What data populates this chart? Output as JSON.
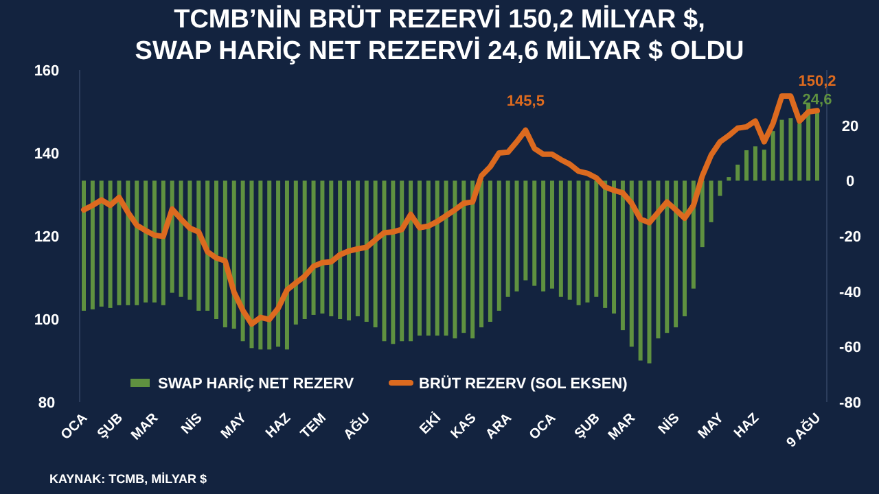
{
  "chart_data": {
    "type": "bar",
    "title": "TCMB’NİN BRÜT REZERVİ 150,2 MİLYAR $,\nSWAP HARİÇ NET REZERVİ 24,6 MİLYAR $ OLDU",
    "categories": [
      "OCA",
      null,
      null,
      null,
      "ŞUB",
      null,
      null,
      null,
      "MAR",
      null,
      null,
      null,
      null,
      "NİS",
      null,
      null,
      null,
      null,
      "MAY",
      null,
      null,
      null,
      null,
      "HAZ",
      null,
      null,
      null,
      "TEM",
      null,
      null,
      null,
      null,
      "AĞU",
      null,
      null,
      null,
      null,
      null,
      null,
      null,
      "EKİ",
      null,
      null,
      null,
      "KAS",
      null,
      null,
      null,
      "ARA",
      null,
      null,
      null,
      null,
      "OCA",
      null,
      null,
      null,
      null,
      "ŞUB",
      null,
      null,
      null,
      "MAR",
      null,
      null,
      null,
      null,
      "NİS",
      null,
      null,
      null,
      null,
      "MAY",
      null,
      null,
      null,
      "HAZ",
      null,
      null,
      null,
      null,
      null,
      null,
      "9 AĞU"
    ],
    "series": [
      {
        "name": "SWAP HARİÇ NET REZERV",
        "axis": "y2",
        "color": "#5f9140",
        "values": [
          -47,
          -46.5,
          -45.5,
          -46,
          -45,
          -45,
          -45,
          -44,
          -44,
          -45,
          -40.5,
          -42,
          -43,
          -47,
          -47,
          -50,
          -53,
          -53.5,
          -58,
          -60.5,
          -61,
          -61,
          -60,
          -61,
          -52,
          -50,
          -48.5,
          -48,
          -49,
          -50,
          -50.5,
          -49,
          -51,
          -53,
          -58,
          -59,
          -58,
          -58,
          -56,
          -56,
          -56,
          -56,
          -57,
          -55,
          -57,
          -53,
          -51,
          -47,
          -42,
          -40,
          -36,
          -38,
          -40,
          -39,
          -42,
          -43,
          -45,
          -44,
          -42,
          -46,
          -48,
          -54,
          -60,
          -65,
          -66,
          -57,
          -55,
          -53,
          -49,
          -39,
          -24,
          -15,
          -5.5,
          1.3,
          5.8,
          11,
          12.4,
          11.2,
          17.9,
          22,
          22.6,
          20.7,
          28,
          24.6
        ],
        "value_labels": [
          null,
          null,
          null,
          null,
          null,
          null,
          null,
          null,
          null,
          null,
          null,
          null,
          null,
          null,
          null,
          null,
          null,
          null,
          null,
          null,
          null,
          null,
          null,
          null,
          null,
          null,
          null,
          null,
          null,
          null,
          null,
          null,
          null,
          null,
          null,
          null,
          null,
          null,
          null,
          null,
          null,
          null,
          null,
          null,
          null,
          null,
          null,
          null,
          null,
          null,
          null,
          null,
          null,
          null,
          null,
          null,
          null,
          null,
          null,
          null,
          null,
          null,
          null,
          null,
          null,
          null,
          null,
          null,
          null,
          null,
          null,
          null,
          null,
          null,
          null,
          null,
          null,
          null,
          null,
          null,
          null,
          null,
          null,
          "24,6"
        ]
      },
      {
        "name": "BRÜT REZERV (SOL EKSEN)",
        "type": "line",
        "color": "#dc6a1f",
        "values": [
          126.3,
          127.4,
          128.7,
          127.4,
          129.3,
          125.7,
          122.6,
          121.3,
          120.2,
          119.9,
          126.5,
          124.1,
          121.9,
          121,
          116.2,
          114.7,
          114,
          106.5,
          102.1,
          98.8,
          100.4,
          99.9,
          102.6,
          107,
          108.7,
          110.3,
          112.7,
          113.6,
          113.8,
          115.5,
          116.4,
          116.9,
          117.3,
          119.1,
          120.8,
          121,
          121.6,
          125.2,
          122,
          122.4,
          123.5,
          124.9,
          126.3,
          127.9,
          128.2,
          134.5,
          136.7,
          140,
          140.2,
          142.7,
          145.5,
          141.1,
          139.7,
          139.7,
          138.4,
          137.3,
          135.6,
          135.1,
          134,
          131.8,
          131,
          130.4,
          127.9,
          124.1,
          123.2,
          125.7,
          128.2,
          126.3,
          124.3,
          127.4,
          134.5,
          139.5,
          142.7,
          144.2,
          146,
          146.3,
          147.7,
          142.7,
          147.1,
          153.7,
          153.7,
          147.7,
          149.9,
          150.2
        ],
        "value_labels": [
          null,
          null,
          null,
          null,
          null,
          null,
          null,
          null,
          null,
          null,
          null,
          null,
          null,
          null,
          null,
          null,
          null,
          null,
          null,
          null,
          null,
          null,
          null,
          null,
          null,
          null,
          null,
          null,
          null,
          null,
          null,
          null,
          null,
          null,
          null,
          null,
          null,
          null,
          null,
          null,
          null,
          null,
          null,
          null,
          null,
          null,
          null,
          null,
          null,
          null,
          "145,5",
          null,
          null,
          null,
          null,
          null,
          null,
          null,
          null,
          null,
          null,
          null,
          null,
          null,
          null,
          null,
          null,
          null,
          null,
          null,
          null,
          null,
          null,
          null,
          null,
          null,
          null,
          null,
          null,
          null,
          null,
          null,
          null,
          "150,2"
        ]
      }
    ],
    "ylim": [
      80,
      160
    ],
    "yticks": [
      80,
      100,
      120,
      140,
      160
    ],
    "y2lim": [
      -80,
      40
    ],
    "y2ticks": [
      -80,
      -60,
      -40,
      -20,
      0,
      20
    ],
    "legend": "bottom",
    "grid": false,
    "annotations": [
      "KAYNAK: TCMB, MİLYAR $"
    ]
  }
}
